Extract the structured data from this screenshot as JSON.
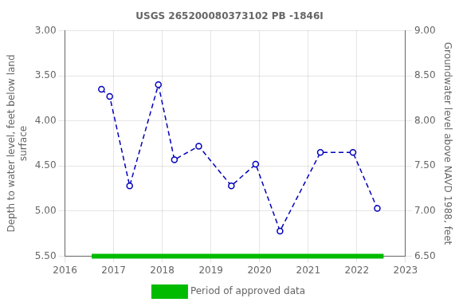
{
  "chart_data": {
    "type": "line",
    "title": "USGS 265200080373102 PB -1846I",
    "ylabel": "Depth to water level, feet below land\nsurface",
    "y2label": "Groundwater level above NAVD 1988, feet",
    "series": [
      {
        "x": [
          2016.75,
          2016.92,
          2017.33,
          2017.92,
          2018.25,
          2018.75,
          2019.42,
          2019.92,
          2020.42,
          2021.25,
          2021.92,
          2022.42
        ],
        "values": [
          3.65,
          3.73,
          4.72,
          3.6,
          4.43,
          4.28,
          4.72,
          4.48,
          5.22,
          4.35,
          4.35,
          4.97
        ],
        "color": "#0000bb",
        "marker": "circle",
        "line_style": "dashed"
      },
      {
        "name": "Period of approved data",
        "x": [
          2016.55,
          2022.55
        ],
        "values": [
          5.5,
          5.5
        ],
        "color": "#00bb00",
        "marker": "none",
        "line_style": "solid"
      }
    ],
    "xlim": [
      2016,
      2023
    ],
    "xticks": [
      2016,
      2017,
      2018,
      2019,
      2020,
      2021,
      2022,
      2023
    ],
    "ylim": [
      5.5,
      3.0
    ],
    "yticks": [
      {
        "value": 3.0,
        "label": "3.00"
      },
      {
        "value": 3.5,
        "label": "3.50"
      },
      {
        "value": 4.0,
        "label": "4.00"
      },
      {
        "value": 4.5,
        "label": "4.50"
      },
      {
        "value": 5.0,
        "label": "5.00"
      },
      {
        "value": 5.5,
        "label": "5.50"
      }
    ],
    "y2lim": [
      6.5,
      9.0
    ],
    "y2ticks": [
      {
        "value": 6.5,
        "label": "6.50"
      },
      {
        "value": 7.0,
        "label": "7.00"
      },
      {
        "value": 7.5,
        "label": "7.50"
      },
      {
        "value": 8.0,
        "label": "8.00"
      },
      {
        "value": 8.5,
        "label": "8.50"
      },
      {
        "value": 9.0,
        "label": "9.00"
      }
    ],
    "grid": true,
    "legend": "bottom"
  }
}
